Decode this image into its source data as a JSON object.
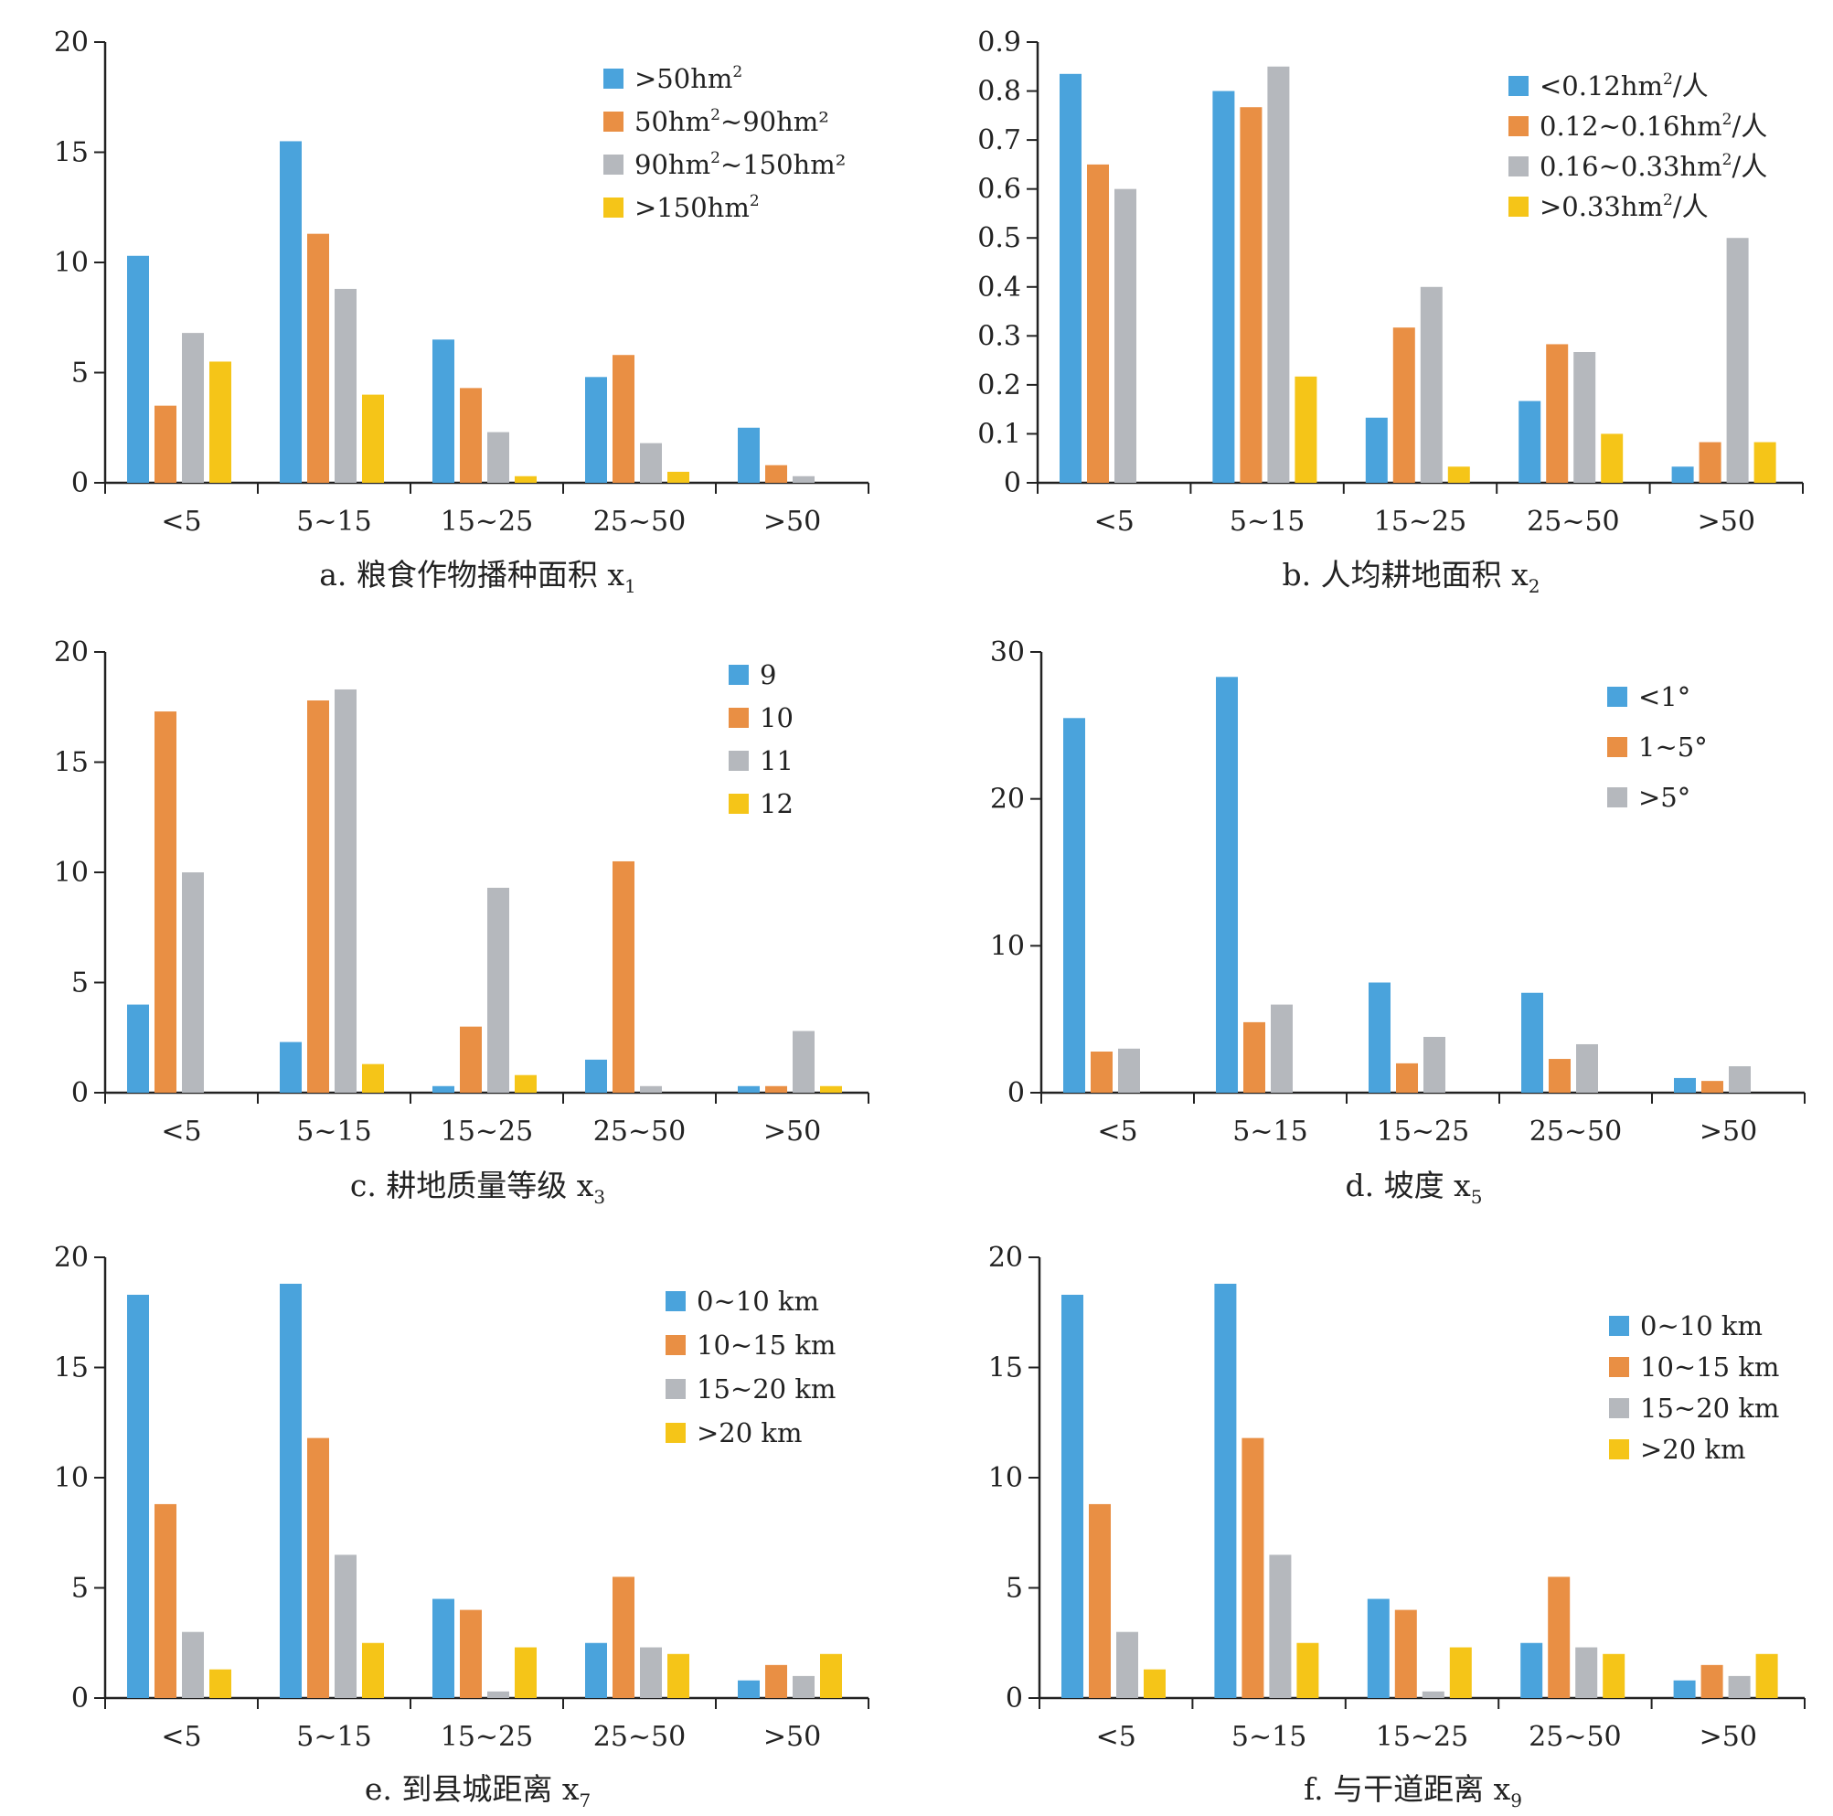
{
  "colors": {
    "blue": "#4aa3dc",
    "orange": "#e98f44",
    "gray": "#b5b8bd",
    "yellow": "#f5c518",
    "axis": "#222222"
  },
  "chart_data": [
    {
      "type": "bar",
      "caption": {
        "text": "a. 粮食作物播种面积 x",
        "sub": "1"
      },
      "categories": [
        "<5",
        "5~15",
        "15~25",
        "25~50",
        ">50"
      ],
      "ylim": [
        0,
        20
      ],
      "yticks": [
        "0",
        "5",
        "10",
        "15",
        "20"
      ],
      "legend_position": "top-right",
      "series": [
        {
          "name": ">50hm",
          "sup": "2",
          "after": "",
          "color": "blue",
          "values": [
            10.3,
            15.5,
            6.5,
            4.8,
            2.5
          ]
        },
        {
          "name": "50hm",
          "sup": "2",
          "after": "~90hm²",
          "color": "orange",
          "values": [
            3.5,
            11.3,
            4.3,
            5.8,
            0.8
          ]
        },
        {
          "name": "90hm",
          "sup": "2",
          "after": "~150hm²",
          "color": "gray",
          "values": [
            6.8,
            8.8,
            2.3,
            1.8,
            0.3
          ]
        },
        {
          "name": ">150hm",
          "sup": "2",
          "after": "",
          "color": "yellow",
          "values": [
            5.5,
            4.0,
            0.3,
            0.5,
            0
          ]
        }
      ]
    },
    {
      "type": "bar",
      "caption": {
        "text": "b. 人均耕地面积 x",
        "sub": "2"
      },
      "categories": [
        "<5",
        "5~15",
        "15~25",
        "25~50",
        ">50"
      ],
      "ylim": [
        0,
        0.9
      ],
      "yticks": [
        "0",
        "0.1",
        "0.2",
        "0.3",
        "0.4",
        "0.5",
        "0.6",
        "0.7",
        "0.8",
        "0.9"
      ],
      "legend_position": "top-right",
      "series": [
        {
          "name": "<0.12hm",
          "sup": "2",
          "after": "/人",
          "color": "blue",
          "values": [
            0.835,
            0.8,
            0.133,
            0.167,
            0.033
          ]
        },
        {
          "name": "0.12~0.16hm",
          "sup": "2",
          "after": "/人",
          "color": "orange",
          "values": [
            0.65,
            0.767,
            0.317,
            0.283,
            0.083
          ]
        },
        {
          "name": "0.16~0.33hm",
          "sup": "2",
          "after": "/人",
          "color": "gray",
          "values": [
            0.6,
            0.85,
            0.4,
            0.267,
            0.5
          ]
        },
        {
          "name": ">0.33hm",
          "sup": "2",
          "after": "/人",
          "color": "yellow",
          "values": [
            0,
            0.217,
            0.033,
            0.1,
            0.083
          ]
        }
      ]
    },
    {
      "type": "bar",
      "caption": {
        "text": "c. 耕地质量等级 x",
        "sub": "3"
      },
      "categories": [
        "<5",
        "5~15",
        "15~25",
        "25~50",
        ">50"
      ],
      "ylim": [
        0,
        20
      ],
      "yticks": [
        "0",
        "5",
        "10",
        "15",
        "20"
      ],
      "legend_position": "top-right",
      "series": [
        {
          "name": "9",
          "sup": "",
          "after": "",
          "color": "blue",
          "values": [
            4.0,
            2.3,
            0.3,
            1.5,
            0.3
          ]
        },
        {
          "name": "10",
          "sup": "",
          "after": "",
          "color": "orange",
          "values": [
            17.3,
            17.8,
            3.0,
            10.5,
            0.3
          ]
        },
        {
          "name": "11",
          "sup": "",
          "after": "",
          "color": "gray",
          "values": [
            10.0,
            18.3,
            9.3,
            0.3,
            2.8
          ]
        },
        {
          "name": "12",
          "sup": "",
          "after": "",
          "color": "yellow",
          "values": [
            0,
            1.3,
            0.8,
            0,
            0.3
          ]
        }
      ]
    },
    {
      "type": "bar",
      "caption": {
        "text": "d. 坡度 x",
        "sub": "5"
      },
      "categories": [
        "<5",
        "5~15",
        "15~25",
        "25~50",
        ">50"
      ],
      "ylim": [
        0,
        30
      ],
      "yticks": [
        "0",
        "10",
        "20",
        "30"
      ],
      "legend_position": "top-right",
      "series": [
        {
          "name": "<1°",
          "sup": "",
          "after": "",
          "color": "blue",
          "values": [
            25.5,
            28.3,
            7.5,
            6.8,
            1.0
          ]
        },
        {
          "name": "1~5°",
          "sup": "",
          "after": "",
          "color": "orange",
          "values": [
            2.8,
            4.8,
            2.0,
            2.3,
            0.8
          ]
        },
        {
          "name": ">5°",
          "sup": "",
          "after": "",
          "color": "gray",
          "values": [
            3.0,
            6.0,
            3.8,
            3.3,
            1.8
          ]
        }
      ]
    },
    {
      "type": "bar",
      "caption": {
        "text": "e. 到县城距离 x",
        "sub": "7"
      },
      "categories": [
        "<5",
        "5~15",
        "15~25",
        "25~50",
        ">50"
      ],
      "ylim": [
        0,
        20
      ],
      "yticks": [
        "0",
        "5",
        "10",
        "15",
        "20"
      ],
      "legend_position": "top-right",
      "series": [
        {
          "name": "0~10 km",
          "sup": "",
          "after": "",
          "color": "blue",
          "values": [
            18.3,
            18.8,
            4.5,
            2.5,
            0.8
          ]
        },
        {
          "name": "10~15 km",
          "sup": "",
          "after": "",
          "color": "orange",
          "values": [
            8.8,
            11.8,
            4.0,
            5.5,
            1.5
          ]
        },
        {
          "name": "15~20 km",
          "sup": "",
          "after": "",
          "color": "gray",
          "values": [
            3.0,
            6.5,
            0.3,
            2.3,
            1.0
          ]
        },
        {
          "name": ">20 km",
          "sup": "",
          "after": "",
          "color": "yellow",
          "values": [
            1.3,
            2.5,
            2.3,
            2.0,
            2.0
          ]
        }
      ]
    },
    {
      "type": "bar",
      "caption": {
        "text": "f. 与干道距离 x",
        "sub": "9"
      },
      "categories": [
        "<5",
        "5~15",
        "15~25",
        "25~50",
        ">50"
      ],
      "ylim": [
        0,
        20
      ],
      "yticks": [
        "0",
        "5",
        "10",
        "15",
        "20"
      ],
      "legend_position": "top-right",
      "series": [
        {
          "name": "0~10 km",
          "sup": "",
          "after": "",
          "color": "blue",
          "values": [
            18.3,
            18.8,
            4.5,
            2.5,
            0.8
          ]
        },
        {
          "name": "10~15 km",
          "sup": "",
          "after": "",
          "color": "orange",
          "values": [
            8.8,
            11.8,
            4.0,
            5.5,
            1.5
          ]
        },
        {
          "name": "15~20 km",
          "sup": "",
          "after": "",
          "color": "gray",
          "values": [
            3.0,
            6.5,
            0.3,
            2.3,
            1.0
          ]
        },
        {
          "name": ">20 km",
          "sup": "",
          "after": "",
          "color": "yellow",
          "values": [
            1.3,
            2.5,
            2.3,
            2.0,
            2.0
          ]
        }
      ]
    }
  ]
}
